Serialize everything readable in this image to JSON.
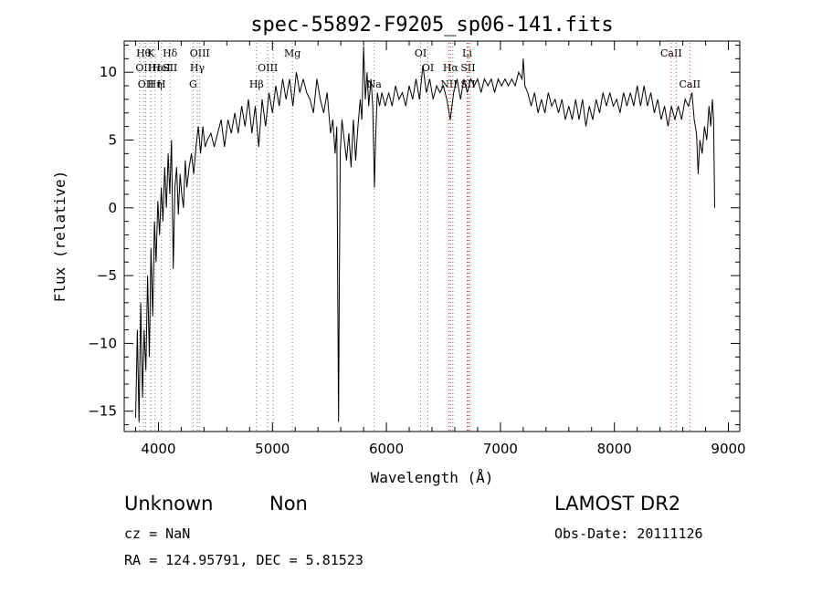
{
  "chart_data": {
    "type": "line",
    "title": "spec-55892-F9205_sp06-141.fits",
    "xlabel": "Wavelength (Å)",
    "ylabel": "Flux (relative)",
    "xlim": [
      3700,
      9100
    ],
    "ylim": [
      -16.5,
      12.3
    ],
    "xticks": [
      4000,
      5000,
      6000,
      7000,
      8000,
      9000
    ],
    "yticks": [
      -15,
      -10,
      -5,
      0,
      5,
      10
    ],
    "grid": false,
    "series": [
      {
        "color": "#000000",
        "points": [
          [
            3800,
            -15.5
          ],
          [
            3815,
            -9
          ],
          [
            3830,
            -15.8
          ],
          [
            3845,
            -7
          ],
          [
            3860,
            -14
          ],
          [
            3875,
            -9
          ],
          [
            3890,
            -12
          ],
          [
            3905,
            -5
          ],
          [
            3920,
            -11
          ],
          [
            3935,
            -3
          ],
          [
            3950,
            -8
          ],
          [
            3965,
            -1
          ],
          [
            3980,
            -4
          ],
          [
            3995,
            0.5
          ],
          [
            4010,
            -2
          ],
          [
            4025,
            1.5
          ],
          [
            4040,
            -1
          ],
          [
            4055,
            3
          ],
          [
            4070,
            0
          ],
          [
            4085,
            4
          ],
          [
            4100,
            1
          ],
          [
            4115,
            5
          ],
          [
            4130,
            -4.5
          ],
          [
            4145,
            1.5
          ],
          [
            4160,
            3
          ],
          [
            4175,
            -0.5
          ],
          [
            4190,
            2.5
          ],
          [
            4205,
            1
          ],
          [
            4220,
            0
          ],
          [
            4235,
            3.5
          ],
          [
            4250,
            1.5
          ],
          [
            4270,
            3
          ],
          [
            4290,
            4
          ],
          [
            4310,
            2.5
          ],
          [
            4330,
            4.5
          ],
          [
            4350,
            6
          ],
          [
            4370,
            4
          ],
          [
            4390,
            6
          ],
          [
            4410,
            4.5
          ],
          [
            4430,
            5
          ],
          [
            4460,
            5.5
          ],
          [
            4490,
            4.5
          ],
          [
            4520,
            5.5
          ],
          [
            4550,
            6.5
          ],
          [
            4580,
            4.5
          ],
          [
            4610,
            6.5
          ],
          [
            4640,
            5.5
          ],
          [
            4670,
            7
          ],
          [
            4700,
            5.5
          ],
          [
            4730,
            7.5
          ],
          [
            4760,
            6
          ],
          [
            4790,
            8
          ],
          [
            4820,
            5.5
          ],
          [
            4850,
            7.5
          ],
          [
            4880,
            4.5
          ],
          [
            4910,
            8
          ],
          [
            4940,
            6
          ],
          [
            4970,
            8.5
          ],
          [
            5000,
            7
          ],
          [
            5030,
            9
          ],
          [
            5060,
            7.5
          ],
          [
            5090,
            9.5
          ],
          [
            5120,
            8
          ],
          [
            5150,
            9.5
          ],
          [
            5180,
            7.5
          ],
          [
            5210,
            10
          ],
          [
            5240,
            8.5
          ],
          [
            5270,
            9.5
          ],
          [
            5300,
            8.5
          ],
          [
            5330,
            8
          ],
          [
            5360,
            7
          ],
          [
            5390,
            9.5
          ],
          [
            5420,
            8
          ],
          [
            5450,
            7
          ],
          [
            5480,
            8.5
          ],
          [
            5510,
            5.5
          ],
          [
            5530,
            6.5
          ],
          [
            5550,
            4
          ],
          [
            5565,
            6
          ],
          [
            5575,
            -8.5
          ],
          [
            5580,
            -15.8
          ],
          [
            5585,
            -8
          ],
          [
            5595,
            4
          ],
          [
            5610,
            6.5
          ],
          [
            5630,
            5
          ],
          [
            5650,
            3.5
          ],
          [
            5670,
            5.5
          ],
          [
            5690,
            3
          ],
          [
            5710,
            6.5
          ],
          [
            5730,
            3.5
          ],
          [
            5750,
            6
          ],
          [
            5770,
            8
          ],
          [
            5785,
            6.5
          ],
          [
            5800,
            11.9
          ],
          [
            5815,
            8
          ],
          [
            5830,
            10
          ],
          [
            5845,
            7.5
          ],
          [
            5865,
            9.5
          ],
          [
            5880,
            7.5
          ],
          [
            5895,
            1.5
          ],
          [
            5905,
            5
          ],
          [
            5920,
            8.5
          ],
          [
            5940,
            7.5
          ],
          [
            5960,
            8.5
          ],
          [
            5990,
            7.5
          ],
          [
            6020,
            8.5
          ],
          [
            6050,
            7.5
          ],
          [
            6080,
            9
          ],
          [
            6110,
            8
          ],
          [
            6140,
            8.5
          ],
          [
            6170,
            7.5
          ],
          [
            6200,
            9
          ],
          [
            6230,
            8
          ],
          [
            6260,
            9.5
          ],
          [
            6290,
            8
          ],
          [
            6320,
            10.5
          ],
          [
            6350,
            8.5
          ],
          [
            6380,
            9.5
          ],
          [
            6410,
            8
          ],
          [
            6440,
            9
          ],
          [
            6470,
            8.5
          ],
          [
            6500,
            9
          ],
          [
            6530,
            8
          ],
          [
            6560,
            6.5
          ],
          [
            6590,
            8.5
          ],
          [
            6620,
            9.5
          ],
          [
            6650,
            8
          ],
          [
            6680,
            9.5
          ],
          [
            6710,
            8.5
          ],
          [
            6740,
            9.5
          ],
          [
            6770,
            9
          ],
          [
            6800,
            9.5
          ],
          [
            6830,
            8.5
          ],
          [
            6860,
            9.5
          ],
          [
            6890,
            9
          ],
          [
            6920,
            9.5
          ],
          [
            6950,
            8.5
          ],
          [
            6980,
            9.5
          ],
          [
            7010,
            9
          ],
          [
            7040,
            9.5
          ],
          [
            7070,
            9
          ],
          [
            7100,
            9.5
          ],
          [
            7130,
            9
          ],
          [
            7160,
            10
          ],
          [
            7190,
            9.5
          ],
          [
            7200,
            11
          ],
          [
            7215,
            9
          ],
          [
            7240,
            8.5
          ],
          [
            7270,
            7.5
          ],
          [
            7300,
            8.5
          ],
          [
            7330,
            7
          ],
          [
            7360,
            8
          ],
          [
            7390,
            7
          ],
          [
            7420,
            8.5
          ],
          [
            7450,
            7.5
          ],
          [
            7480,
            8
          ],
          [
            7510,
            7
          ],
          [
            7540,
            8
          ],
          [
            7570,
            6.5
          ],
          [
            7600,
            7.5
          ],
          [
            7630,
            6.5
          ],
          [
            7660,
            8
          ],
          [
            7690,
            6.5
          ],
          [
            7720,
            8
          ],
          [
            7750,
            6
          ],
          [
            7780,
            7.5
          ],
          [
            7810,
            6.5
          ],
          [
            7840,
            8
          ],
          [
            7870,
            7
          ],
          [
            7900,
            8.5
          ],
          [
            7930,
            7.5
          ],
          [
            7960,
            8.5
          ],
          [
            7990,
            7.5
          ],
          [
            8020,
            8
          ],
          [
            8050,
            7
          ],
          [
            8080,
            8.5
          ],
          [
            8110,
            7.5
          ],
          [
            8140,
            8.5
          ],
          [
            8170,
            7.5
          ],
          [
            8200,
            9
          ],
          [
            8230,
            7.5
          ],
          [
            8260,
            9
          ],
          [
            8290,
            7.5
          ],
          [
            8320,
            8.5
          ],
          [
            8350,
            7
          ],
          [
            8380,
            8
          ],
          [
            8410,
            6.5
          ],
          [
            8440,
            7.5
          ],
          [
            8470,
            6
          ],
          [
            8500,
            7.5
          ],
          [
            8530,
            6.5
          ],
          [
            8560,
            7.5
          ],
          [
            8590,
            6.5
          ],
          [
            8620,
            8
          ],
          [
            8650,
            7.5
          ],
          [
            8680,
            8.5
          ],
          [
            8700,
            6.5
          ],
          [
            8720,
            5.5
          ],
          [
            8735,
            2.5
          ],
          [
            8750,
            5
          ],
          [
            8770,
            4
          ],
          [
            8790,
            6
          ],
          [
            8810,
            5
          ],
          [
            8830,
            7.5
          ],
          [
            8845,
            6
          ],
          [
            8860,
            8
          ],
          [
            8870,
            6.5
          ],
          [
            8880,
            0
          ]
        ]
      }
    ],
    "lines": [
      {
        "x": 3835,
        "color": "#7a7a7a",
        "top": [],
        "bot": []
      },
      {
        "x": 3870,
        "color": "#7a7a7a",
        "top": [
          {
            "t": "Hθ",
            "r": 0
          },
          {
            "t": "OII",
            "r": 1
          }
        ],
        "bot": []
      },
      {
        "x": 3889,
        "color": "#7a7a7a",
        "top": [
          {
            "t": "OII",
            "r": 2
          }
        ],
        "bot": []
      },
      {
        "x": 3933,
        "color": "#7a7a7a",
        "top": [
          {
            "t": "K",
            "r": 0
          }
        ],
        "bot": []
      },
      {
        "x": 3970,
        "color": "#7a7a7a",
        "top": [
          {
            "t": "Hε",
            "r": 1
          },
          {
            "t": "Hη",
            "r": 2
          }
        ],
        "bot": []
      },
      {
        "x": 4026,
        "color": "#7a7a7a",
        "top": [
          {
            "t": "HeI",
            "r": 1
          },
          {
            "t": "H",
            "r": 2
          }
        ],
        "bot": []
      },
      {
        "x": 4102,
        "color": "#7a7a7a",
        "top": [
          {
            "t": "Hδ",
            "r": 0
          },
          {
            "t": "SII",
            "r": 1
          }
        ],
        "bot": []
      },
      {
        "x": 4304,
        "color": "#7a7a7a",
        "top": [
          {
            "t": "G",
            "r": 2
          }
        ],
        "bot": []
      },
      {
        "x": 4341,
        "color": "#7a7a7a",
        "top": [
          {
            "t": "Hγ",
            "r": 1
          }
        ],
        "bot": []
      },
      {
        "x": 4363,
        "color": "#7a7a7a",
        "top": [
          {
            "t": "OIII",
            "r": 0
          }
        ],
        "bot": []
      },
      {
        "x": 4861,
        "color": "#7a7a7a",
        "top": [
          {
            "t": "Hβ",
            "r": 2
          }
        ],
        "bot": []
      },
      {
        "x": 4959,
        "color": "#7a7a7a",
        "top": [
          {
            "t": "OIII",
            "r": 1
          }
        ],
        "bot": []
      },
      {
        "x": 5007,
        "color": "#7a7a7a",
        "top": [],
        "bot": []
      },
      {
        "x": 5175,
        "color": "#7a7a7a",
        "top": [
          {
            "t": "Mg",
            "r": 0
          }
        ],
        "bot": []
      },
      {
        "x": 5893,
        "color": "#7a7a7a",
        "top": [
          {
            "t": "Na",
            "r": 2
          }
        ],
        "bot": []
      },
      {
        "x": 6300,
        "color": "#7a7a7a",
        "top": [
          {
            "t": "OI",
            "r": 0
          }
        ],
        "bot": []
      },
      {
        "x": 6364,
        "color": "#7a7a7a",
        "top": [
          {
            "t": "OI",
            "r": 1
          }
        ],
        "bot": []
      },
      {
        "x": 6548,
        "color": "#c04040",
        "top": [
          {
            "t": "NII",
            "r": 2
          }
        ],
        "bot": []
      },
      {
        "x": 6563,
        "color": "#c04040",
        "top": [
          {
            "t": "Hα",
            "r": 1
          }
        ],
        "bot": []
      },
      {
        "x": 6583,
        "color": "#c04040",
        "top": [],
        "bot": []
      },
      {
        "x": 6708,
        "color": "#c04040",
        "top": [
          {
            "t": "Li",
            "r": 0
          }
        ],
        "bot": []
      },
      {
        "x": 6716,
        "color": "#c04040",
        "top": [
          {
            "t": "SII",
            "r": 1
          },
          {
            "t": "SII",
            "r": 2
          }
        ],
        "bot": []
      },
      {
        "x": 6731,
        "color": "#c04040",
        "top": [],
        "bot": []
      },
      {
        "x": 8498,
        "color": "#c04040",
        "top": [
          {
            "t": "CaII",
            "r": 0
          }
        ],
        "bot": []
      },
      {
        "x": 8542,
        "color": "#c04040",
        "top": [],
        "bot": []
      },
      {
        "x": 8662,
        "color": "#c04040",
        "top": [
          {
            "t": "CaII",
            "r": 2
          }
        ],
        "bot": []
      }
    ]
  },
  "info": {
    "class": "Unknown",
    "subclass": "Non",
    "survey": "LAMOST DR2",
    "cz": "cz = NaN",
    "obs_date": "Obs-Date: 20111126",
    "coords": "RA = 124.95791, DEC =   5.81523"
  }
}
